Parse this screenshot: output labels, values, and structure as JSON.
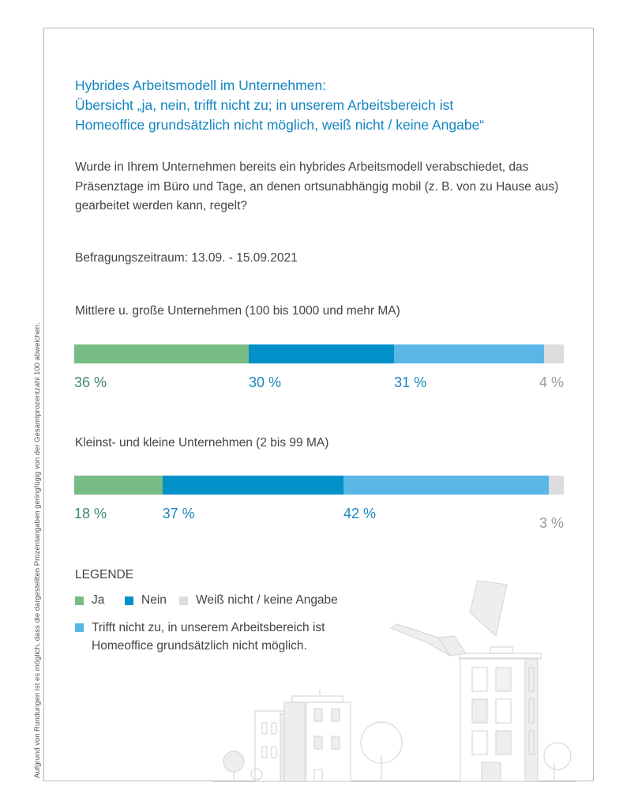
{
  "side_note": "Aufgrund von Rundungen ist es möglich, dass die dargestellten Prozentangaben geringfügig von der Gesamtprozentzahl 100 abweichen.",
  "title_lines": [
    "Hybrides Arbeitsmodell im Unternehmen:",
    "Übersicht „ja, nein, trifft nicht zu; in unserem Arbeitsbereich ist",
    "Homeoffice grundsätzlich nicht möglich, weiß nicht / keine Angabe“"
  ],
  "question": "Wurde in Ihrem Unternehmen bereits ein hybrides Arbeitsmodell verabschiedet, das Präsenztage im Büro und Tage, an denen ortsunabhängig mobil (z. B. von zu Hause aus) gearbeitet werden kann, regelt?",
  "period": "Befragungszeitraum: 13.09. - 15.09.2021",
  "chart_data": {
    "type": "bar",
    "orientation": "horizontal-stacked",
    "categories": [
      "Mittlere u. große Unternehmen (100 bis 1000 und mehr MA)",
      "Kleinst- und kleine Unternehmen (2 bis 99 MA)"
    ],
    "series": [
      {
        "name": "Ja",
        "color": "#77bb85",
        "label_color": "#3d8a70",
        "values": [
          36,
          18
        ],
        "labels": [
          "36 %",
          "18 %"
        ]
      },
      {
        "name": "Nein",
        "color": "#0291c8",
        "label_color": "#1a86be",
        "values": [
          30,
          37
        ],
        "labels": [
          "30 %",
          "37 %"
        ]
      },
      {
        "name": "Trifft nicht zu, in unserem Arbeitsbereich ist Homeoffice grundsätzlich nicht möglich.",
        "color": "#5bb6e8",
        "label_color": "#1a86be",
        "values": [
          31,
          42
        ],
        "labels": [
          "31 %",
          "42 %"
        ]
      },
      {
        "name": "Weiß nicht / keine Angabe",
        "color": "#dcdcdc",
        "label_color": "#9a9a9a",
        "values": [
          4,
          3
        ],
        "labels": [
          "4 %",
          "3 %"
        ]
      }
    ],
    "unit": "%"
  },
  "legend": {
    "title": "LEGENDE",
    "items": [
      {
        "label": "Ja",
        "color": "#77bb85"
      },
      {
        "label": "Nein",
        "color": "#0291c8"
      },
      {
        "label": "Weiß nicht / keine Angabe",
        "color": "#dcdcdc"
      },
      {
        "label_lines": [
          "Trifft nicht zu, in unserem Arbeitsbereich ist",
          "Homeoffice grundsätzlich nicht möglich."
        ],
        "color": "#5bb6e8"
      }
    ]
  }
}
